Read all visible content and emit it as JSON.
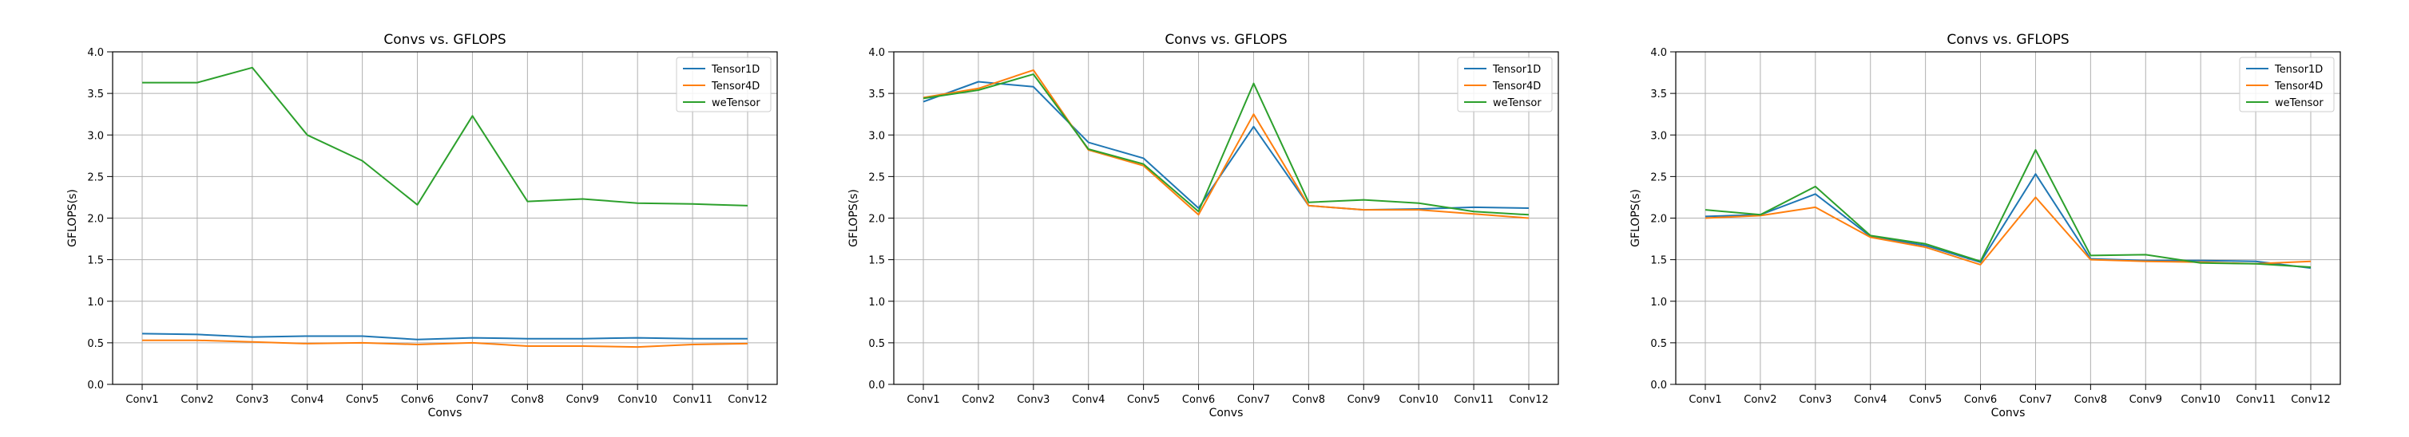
{
  "chart_data": [
    {
      "type": "line",
      "title": "Convs vs. GFLOPS",
      "xlabel": "Convs",
      "ylabel": "GFLOPS(s)",
      "categories": [
        "Conv1",
        "Conv2",
        "Conv3",
        "Conv4",
        "Conv5",
        "Conv6",
        "Conv7",
        "Conv8",
        "Conv9",
        "Conv10",
        "Conv11",
        "Conv12"
      ],
      "ylim": [
        0,
        4.0
      ],
      "yticks": [
        "0.0",
        "0.5",
        "1.0",
        "1.5",
        "2.0",
        "2.5",
        "3.0",
        "3.5",
        "4.0"
      ],
      "grid": true,
      "legend": "top-right",
      "series": [
        {
          "name": "Tensor1D",
          "color": "#1f77b4",
          "values": [
            0.61,
            0.6,
            0.57,
            0.58,
            0.58,
            0.54,
            0.56,
            0.55,
            0.55,
            0.56,
            0.55,
            0.55
          ]
        },
        {
          "name": "Tensor4D",
          "color": "#ff7f0e",
          "values": [
            0.53,
            0.53,
            0.51,
            0.49,
            0.5,
            0.48,
            0.5,
            0.46,
            0.46,
            0.45,
            0.48,
            0.49
          ]
        },
        {
          "name": "weTensor",
          "color": "#2ca02c",
          "values": [
            3.63,
            3.63,
            3.81,
            3.0,
            2.69,
            2.16,
            3.23,
            2.2,
            2.23,
            2.18,
            2.17,
            2.15
          ]
        }
      ]
    },
    {
      "type": "line",
      "title": "Convs vs. GFLOPS",
      "xlabel": "Convs",
      "ylabel": "GFLOPS(s)",
      "categories": [
        "Conv1",
        "Conv2",
        "Conv3",
        "Conv4",
        "Conv5",
        "Conv6",
        "Conv7",
        "Conv8",
        "Conv9",
        "Conv10",
        "Conv11",
        "Conv12"
      ],
      "ylim": [
        0,
        4.0
      ],
      "yticks": [
        "0.0",
        "0.5",
        "1.0",
        "1.5",
        "2.0",
        "2.5",
        "3.0",
        "3.5",
        "4.0"
      ],
      "grid": true,
      "legend": "top-right",
      "series": [
        {
          "name": "Tensor1D",
          "color": "#1f77b4",
          "values": [
            3.4,
            3.64,
            3.58,
            2.91,
            2.72,
            2.12,
            3.1,
            2.15,
            2.1,
            2.11,
            2.13,
            2.12
          ]
        },
        {
          "name": "Tensor4D",
          "color": "#ff7f0e",
          "values": [
            3.45,
            3.56,
            3.78,
            2.82,
            2.63,
            2.04,
            3.25,
            2.15,
            2.1,
            2.1,
            2.05,
            2.0
          ]
        },
        {
          "name": "weTensor",
          "color": "#2ca02c",
          "values": [
            3.44,
            3.54,
            3.73,
            2.83,
            2.65,
            2.08,
            3.62,
            2.19,
            2.22,
            2.18,
            2.08,
            2.04
          ]
        }
      ]
    },
    {
      "type": "line",
      "title": "Convs vs. GFLOPS",
      "xlabel": "Convs",
      "ylabel": "GFLOPS(s)",
      "categories": [
        "Conv1",
        "Conv2",
        "Conv3",
        "Conv4",
        "Conv5",
        "Conv6",
        "Conv7",
        "Conv8",
        "Conv9",
        "Conv10",
        "Conv11",
        "Conv12"
      ],
      "ylim": [
        0,
        4.0
      ],
      "yticks": [
        "0.0",
        "0.5",
        "1.0",
        "1.5",
        "2.0",
        "2.5",
        "3.0",
        "3.5",
        "4.0"
      ],
      "grid": true,
      "legend": "top-right",
      "series": [
        {
          "name": "Tensor1D",
          "color": "#1f77b4",
          "values": [
            2.02,
            2.04,
            2.29,
            1.78,
            1.67,
            1.47,
            2.53,
            1.51,
            1.49,
            1.49,
            1.48,
            1.4
          ]
        },
        {
          "name": "Tensor4D",
          "color": "#ff7f0e",
          "values": [
            2.0,
            2.03,
            2.13,
            1.77,
            1.65,
            1.44,
            2.25,
            1.5,
            1.48,
            1.47,
            1.45,
            1.48
          ]
        },
        {
          "name": "weTensor",
          "color": "#2ca02c",
          "values": [
            2.1,
            2.04,
            2.38,
            1.79,
            1.69,
            1.48,
            2.82,
            1.55,
            1.56,
            1.46,
            1.45,
            1.41
          ]
        }
      ]
    }
  ]
}
